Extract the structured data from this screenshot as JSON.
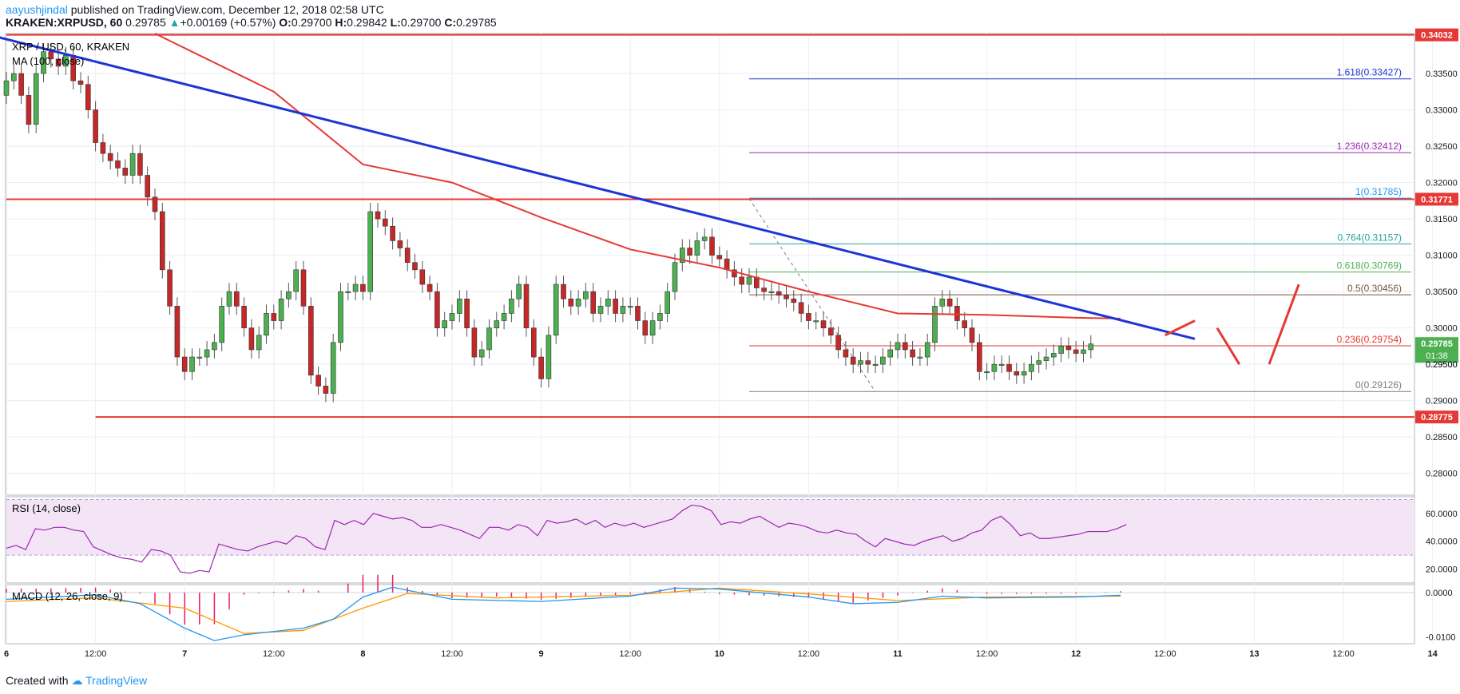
{
  "header": {
    "author": "aayushjindal",
    "published": "published on TradingView.com, December 12, 2018 02:58 UTC",
    "symbol": "KRAKEN:XRPUSD, 60",
    "last": "0.29785",
    "change": "+0.00169 (+0.57%)",
    "o_label": "O:",
    "o": "0.29700",
    "h_label": "H:",
    "h": "0.29842",
    "l_label": "L:",
    "l": "0.29700",
    "c_label": "C:",
    "c": "0.29785"
  },
  "legend": {
    "pair": "XRP / USD, 60, KRAKEN",
    "ma": "MA (100, close)",
    "rsi": "RSI (14, close)",
    "macd": "MACD (12, 26, close, 9)"
  },
  "footer": {
    "created": "Created with",
    "brand": "TradingView"
  },
  "colors": {
    "up": "#4caf50",
    "down": "#c62828",
    "hline": "#e53935",
    "trend": "#1e35d6",
    "ma": "#e53935",
    "rsi": "#9c27b0",
    "rsi_band": "#f3e5f5",
    "macd": "#2196f3",
    "signal": "#ff9800",
    "hist": "#e91e63"
  },
  "chart_data": {
    "type": "candlestick",
    "price_axis": {
      "range": [
        0.277,
        0.3405
      ],
      "ticks": [
        "0.33500",
        "0.33000",
        "0.32500",
        "0.32000",
        "0.31500",
        "0.31000",
        "0.30500",
        "0.30000",
        "0.29500",
        "0.29000",
        "0.28500",
        "0.28000"
      ]
    },
    "time_axis": {
      "labels": [
        {
          "t": 0,
          "text": "6"
        },
        {
          "t": 12,
          "text": "12:00"
        },
        {
          "t": 24,
          "text": "7"
        },
        {
          "t": 36,
          "text": "12:00"
        },
        {
          "t": 48,
          "text": "8"
        },
        {
          "t": 60,
          "text": "12:00"
        },
        {
          "t": 72,
          "text": "9"
        },
        {
          "t": 84,
          "text": "12:00"
        },
        {
          "t": 96,
          "text": "10"
        },
        {
          "t": 108,
          "text": "12:00"
        },
        {
          "t": 120,
          "text": "11"
        },
        {
          "t": 132,
          "text": "12:00"
        },
        {
          "t": 144,
          "text": "12"
        },
        {
          "t": 156,
          "text": "12:00"
        },
        {
          "t": 168,
          "text": "13"
        },
        {
          "t": 180,
          "text": "12:00"
        },
        {
          "t": 192,
          "text": "14"
        }
      ]
    },
    "closes": [
      0.334,
      0.335,
      0.332,
      0.328,
      0.335,
      0.338,
      0.337,
      0.336,
      0.3375,
      0.334,
      0.3335,
      0.33,
      0.3255,
      0.324,
      0.323,
      0.322,
      0.321,
      0.324,
      0.321,
      0.318,
      0.316,
      0.308,
      0.303,
      0.296,
      0.294,
      0.296,
      0.296,
      0.297,
      0.298,
      0.303,
      0.305,
      0.303,
      0.3,
      0.297,
      0.299,
      0.302,
      0.301,
      0.304,
      0.305,
      0.308,
      0.303,
      0.2935,
      0.292,
      0.291,
      0.298,
      0.305,
      0.305,
      0.306,
      0.305,
      0.316,
      0.315,
      0.314,
      0.312,
      0.311,
      0.309,
      0.308,
      0.306,
      0.305,
      0.3,
      0.301,
      0.302,
      0.304,
      0.3,
      0.296,
      0.297,
      0.3,
      0.301,
      0.302,
      0.304,
      0.306,
      0.3,
      0.296,
      0.293,
      0.299,
      0.306,
      0.304,
      0.303,
      0.304,
      0.305,
      0.302,
      0.303,
      0.304,
      0.302,
      0.303,
      0.303,
      0.301,
      0.299,
      0.301,
      0.302,
      0.305,
      0.309,
      0.311,
      0.31,
      0.312,
      0.3125,
      0.31,
      0.3095,
      0.308,
      0.307,
      0.306,
      0.307,
      0.3055,
      0.305,
      0.305,
      0.3045,
      0.304,
      0.3035,
      0.302,
      0.301,
      0.301,
      0.3,
      0.299,
      0.297,
      0.296,
      0.295,
      0.2955,
      0.295,
      0.295,
      0.296,
      0.297,
      0.298,
      0.297,
      0.296,
      0.296,
      0.298,
      0.303,
      0.304,
      0.303,
      0.301,
      0.3,
      0.298,
      0.294,
      0.294,
      0.295,
      0.295,
      0.294,
      0.2935,
      0.294,
      0.295,
      0.2955,
      0.296,
      0.2965,
      0.2975,
      0.297,
      0.2965,
      0.297,
      0.2978
    ],
    "opens": [
      0.332,
      0.334,
      0.335,
      0.332,
      0.328,
      0.335,
      0.338,
      0.337,
      0.336,
      0.3375,
      0.334,
      0.3335,
      0.33,
      0.3255,
      0.324,
      0.323,
      0.322,
      0.321,
      0.324,
      0.321,
      0.318,
      0.316,
      0.308,
      0.303,
      0.296,
      0.294,
      0.296,
      0.296,
      0.297,
      0.298,
      0.303,
      0.305,
      0.303,
      0.3,
      0.297,
      0.299,
      0.302,
      0.301,
      0.304,
      0.305,
      0.308,
      0.303,
      0.2935,
      0.292,
      0.291,
      0.298,
      0.305,
      0.305,
      0.306,
      0.305,
      0.316,
      0.315,
      0.314,
      0.312,
      0.311,
      0.309,
      0.308,
      0.306,
      0.305,
      0.3,
      0.301,
      0.302,
      0.304,
      0.3,
      0.296,
      0.297,
      0.3,
      0.301,
      0.302,
      0.304,
      0.306,
      0.3,
      0.296,
      0.293,
      0.299,
      0.306,
      0.304,
      0.303,
      0.304,
      0.305,
      0.302,
      0.303,
      0.304,
      0.302,
      0.303,
      0.303,
      0.301,
      0.299,
      0.301,
      0.302,
      0.305,
      0.309,
      0.311,
      0.31,
      0.312,
      0.3125,
      0.31,
      0.3095,
      0.308,
      0.307,
      0.306,
      0.307,
      0.3055,
      0.305,
      0.305,
      0.3045,
      0.304,
      0.3035,
      0.302,
      0.301,
      0.301,
      0.3,
      0.299,
      0.297,
      0.296,
      0.295,
      0.2955,
      0.295,
      0.295,
      0.296,
      0.297,
      0.298,
      0.297,
      0.296,
      0.296,
      0.298,
      0.303,
      0.304,
      0.303,
      0.301,
      0.3,
      0.298,
      0.294,
      0.294,
      0.295,
      0.295,
      0.294,
      0.2935,
      0.294,
      0.295,
      0.2955,
      0.296,
      0.2965,
      0.2975,
      0.297,
      0.2965,
      0.297
    ],
    "horizontal_levels": [
      {
        "name": "resistance-top",
        "value": 0.34032,
        "label": "0.34032"
      },
      {
        "name": "resistance-mid",
        "value": 0.31771,
        "label": "0.31771"
      },
      {
        "name": "support",
        "value": 0.28775,
        "label": "0.28775"
      }
    ],
    "current_price": {
      "value": 0.29785,
      "label": "0.29785",
      "countdown": "01:38"
    },
    "hidden_tick": "0.29500",
    "fibonacci": [
      {
        "ratio": "1.618",
        "value": 0.33427,
        "label": "1.618(0.33427)",
        "color": "#1e35d6"
      },
      {
        "ratio": "1.236",
        "value": 0.32412,
        "label": "1.236(0.32412)",
        "color": "#9c27b0"
      },
      {
        "ratio": "1",
        "value": 0.31785,
        "label": "1(0.31785)",
        "color": "#2196f3"
      },
      {
        "ratio": "0.764",
        "value": 0.31157,
        "label": "0.764(0.31157)",
        "color": "#26a69a"
      },
      {
        "ratio": "0.618",
        "value": 0.30769,
        "label": "0.618(0.30769)",
        "color": "#4caf50"
      },
      {
        "ratio": "0.5",
        "value": 0.30456,
        "label": "0.5(0.30456)",
        "color": "#795548"
      },
      {
        "ratio": "0.236",
        "value": 0.29754,
        "label": "0.236(0.29754)",
        "color": "#e53935"
      },
      {
        "ratio": "0",
        "value": 0.29126,
        "label": "0(0.29126)",
        "color": "#787b86"
      }
    ],
    "fib_start_t": 100,
    "trendline": [
      {
        "t": -3,
        "p": 0.3405
      },
      {
        "t": 160,
        "p": 0.2985
      }
    ],
    "ma_points": [
      {
        "t": 20,
        "p": 0.3405
      },
      {
        "t": 36,
        "p": 0.3325
      },
      {
        "t": 48,
        "p": 0.3225
      },
      {
        "t": 60,
        "p": 0.32
      },
      {
        "t": 72,
        "p": 0.3152
      },
      {
        "t": 84,
        "p": 0.3108
      },
      {
        "t": 96,
        "p": 0.3083
      },
      {
        "t": 108,
        "p": 0.305
      },
      {
        "t": 120,
        "p": 0.302
      },
      {
        "t": 132,
        "p": 0.3018
      },
      {
        "t": 144,
        "p": 0.3014
      },
      {
        "t": 150,
        "p": 0.3013
      }
    ],
    "projection": [
      {
        "t": 156,
        "p": 0.299
      },
      {
        "t": 160,
        "p": 0.301
      },
      {
        "t": 163,
        "p": 0.3
      },
      {
        "t": 166,
        "p": 0.295
      },
      {
        "t": 170,
        "p": 0.295
      },
      {
        "t": 174,
        "p": 0.306
      }
    ],
    "rsi": {
      "range": [
        10,
        72
      ],
      "ticks": [
        "60.0000",
        "40.0000",
        "20.0000"
      ],
      "band": [
        30,
        70
      ],
      "values": [
        35,
        37,
        34,
        49,
        48,
        50,
        50,
        48,
        47,
        36,
        33,
        30,
        28,
        27,
        25,
        34,
        33,
        30,
        18,
        17,
        19,
        18,
        38,
        36,
        34,
        33,
        36,
        38,
        40,
        38,
        44,
        42,
        36,
        34,
        55,
        52,
        55,
        52,
        60,
        58,
        56,
        57,
        55,
        50,
        50,
        52,
        50,
        48,
        45,
        42,
        50,
        50,
        48,
        52,
        50,
        44,
        55,
        53,
        54,
        56,
        52,
        55,
        50,
        53,
        51,
        53,
        50,
        52,
        54,
        56,
        62,
        66,
        65,
        62,
        52,
        54,
        53,
        56,
        58,
        54,
        50,
        53,
        52,
        50,
        47,
        46,
        48,
        46,
        45,
        40,
        36,
        42,
        40,
        38,
        37,
        40,
        42,
        44,
        40,
        42,
        46,
        48,
        55,
        58,
        52,
        44,
        46,
        42,
        42,
        43,
        44,
        45,
        47,
        47,
        47,
        49,
        52
      ],
      "values_start_t": 0
    },
    "macd": {
      "range": [
        -0.0115,
        0.0018
      ],
      "ticks": [
        "0.0000",
        "-0.0100"
      ],
      "macd_points": [
        {
          "t": 0,
          "p": -0.0015
        },
        {
          "t": 12,
          "p": -0.0005
        },
        {
          "t": 18,
          "p": -0.0025
        },
        {
          "t": 24,
          "p": -0.008
        },
        {
          "t": 28,
          "p": -0.0108
        },
        {
          "t": 32,
          "p": -0.0095
        },
        {
          "t": 40,
          "p": -0.008
        },
        {
          "t": 44,
          "p": -0.006
        },
        {
          "t": 48,
          "p": -0.001
        },
        {
          "t": 52,
          "p": 0.0012
        },
        {
          "t": 60,
          "p": -0.0015
        },
        {
          "t": 72,
          "p": -0.002
        },
        {
          "t": 84,
          "p": -0.0008
        },
        {
          "t": 90,
          "p": 0.001
        },
        {
          "t": 96,
          "p": 0.0008
        },
        {
          "t": 108,
          "p": -0.001
        },
        {
          "t": 114,
          "p": -0.0025
        },
        {
          "t": 120,
          "p": -0.0022
        },
        {
          "t": 126,
          "p": -0.0008
        },
        {
          "t": 132,
          "p": -0.0012
        },
        {
          "t": 144,
          "p": -0.001
        },
        {
          "t": 150,
          "p": -0.0006
        }
      ],
      "signal_points": [
        {
          "t": 0,
          "p": -0.002
        },
        {
          "t": 12,
          "p": -0.0012
        },
        {
          "t": 24,
          "p": -0.0035
        },
        {
          "t": 32,
          "p": -0.0092
        },
        {
          "t": 40,
          "p": -0.0085
        },
        {
          "t": 48,
          "p": -0.0035
        },
        {
          "t": 54,
          "p": -0.0002
        },
        {
          "t": 66,
          "p": -0.0012
        },
        {
          "t": 84,
          "p": -0.0006
        },
        {
          "t": 96,
          "p": 0.001
        },
        {
          "t": 108,
          "p": -0.0003
        },
        {
          "t": 120,
          "p": -0.0018
        },
        {
          "t": 132,
          "p": -0.001
        },
        {
          "t": 150,
          "p": -0.0008
        }
      ]
    }
  }
}
